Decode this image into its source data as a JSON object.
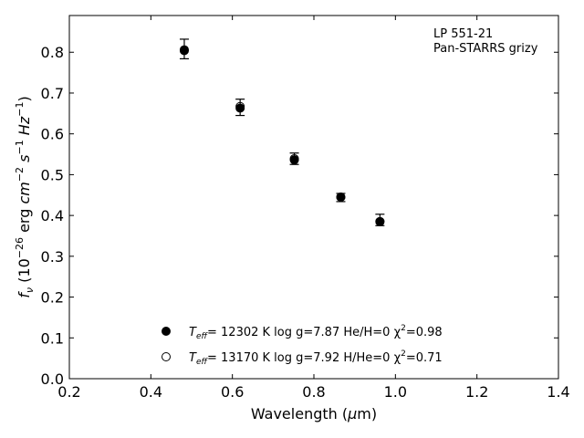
{
  "chart_data": {
    "type": "scatter",
    "annotation": [
      "LP 551-21",
      "Pan-STARRS grizy"
    ],
    "xlabel": "Wavelength (μm)",
    "ylabel": "f_ν (10^-26 erg cm^-2 s^-1 Hz^-1)",
    "xlim": [
      0.2,
      1.4
    ],
    "ylim": [
      0.0,
      0.89
    ],
    "xticks": [
      0.2,
      0.4,
      0.6,
      0.8,
      1.0,
      1.2,
      1.4
    ],
    "xtick_labels": [
      "0.2",
      "0.4",
      "0.6",
      "0.8",
      "1.0",
      "1.2",
      "1.4"
    ],
    "yticks": [
      0.0,
      0.1,
      0.2,
      0.3,
      0.4,
      0.5,
      0.6,
      0.7,
      0.8
    ],
    "ytick_labels": [
      "0.0",
      "0.1",
      "0.2",
      "0.3",
      "0.4",
      "0.5",
      "0.6",
      "0.7",
      "0.8"
    ],
    "observed": {
      "x": [
        0.482,
        0.619,
        0.752,
        0.866,
        0.962
      ],
      "y": [
        0.808,
        0.665,
        0.539,
        0.444,
        0.389
      ],
      "yerr": [
        0.024,
        0.02,
        0.014,
        0.01,
        0.014
      ]
    },
    "series": [
      {
        "label_parts": [
          "T",
          "eff",
          "= 12302 K  log g=7.87  He/H=0  χ",
          "2",
          "=0.98"
        ],
        "marker": "filled-circle",
        "x": [
          0.482,
          0.619,
          0.752,
          0.866,
          0.962
        ],
        "y": [
          0.804,
          0.663,
          0.536,
          0.445,
          0.385
        ]
      },
      {
        "label_parts": [
          "T",
          "eff",
          "= 13170 K  log g=7.92  H/He=0  χ",
          "2",
          "=0.71"
        ],
        "marker": "open-circle",
        "x": [
          0.482,
          0.619,
          0.752,
          0.866,
          0.962
        ],
        "y": [
          0.806,
          0.667,
          0.539,
          0.445,
          0.385
        ]
      }
    ],
    "grid": false,
    "legend_position": "bottom-center",
    "colors": {
      "marker": "#000000",
      "axes": "#000000",
      "background": "#ffffff"
    }
  }
}
